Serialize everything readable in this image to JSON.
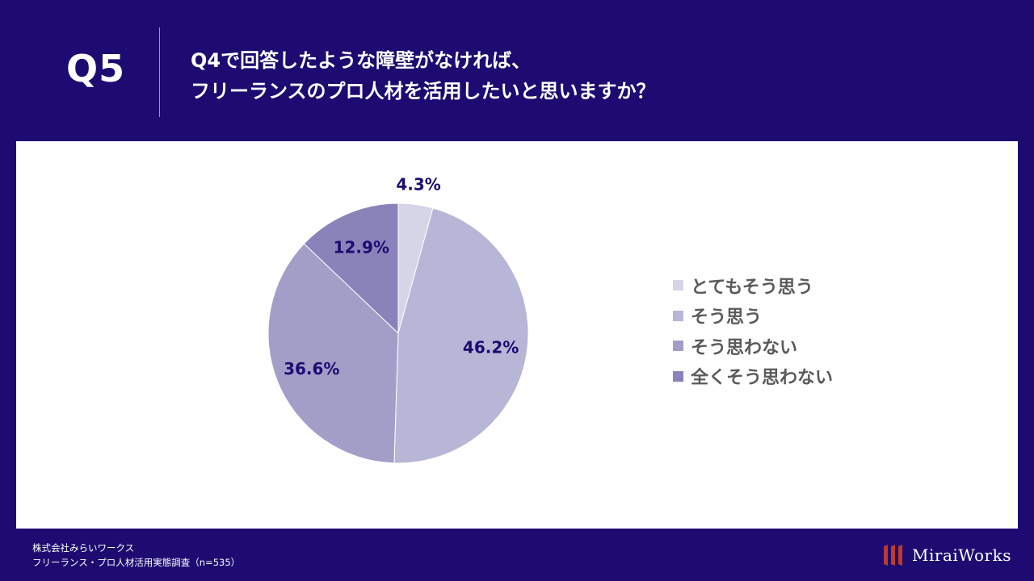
{
  "question": {
    "number": "Q5",
    "line1": "Q4で回答したような障壁がなければ、",
    "line2": "フリーランスのプロ人材を活用したいと思いますか？"
  },
  "chart_data": {
    "type": "pie",
    "categories": [
      "とてもそう思う",
      "そう思う",
      "そう思わない",
      "全くそう思わない"
    ],
    "values": [
      4.3,
      46.2,
      36.6,
      12.9
    ],
    "labels": [
      "4.3%",
      "46.2%",
      "36.6%",
      "12.9%"
    ],
    "colors": [
      "#d6d4e7",
      "#b8b6d6",
      "#a29ec8",
      "#8a83ba"
    ],
    "label_color": "#1d0b72",
    "legend_position": "right"
  },
  "footer": {
    "line1": "株式会社みらいワークス",
    "line2": "フリーランス・プロ人材活用実態調査（n=535）"
  },
  "brand": {
    "name": "MiraiWorks",
    "logo_icon": "bars-logo-icon",
    "logo_color": "#c0392b"
  }
}
